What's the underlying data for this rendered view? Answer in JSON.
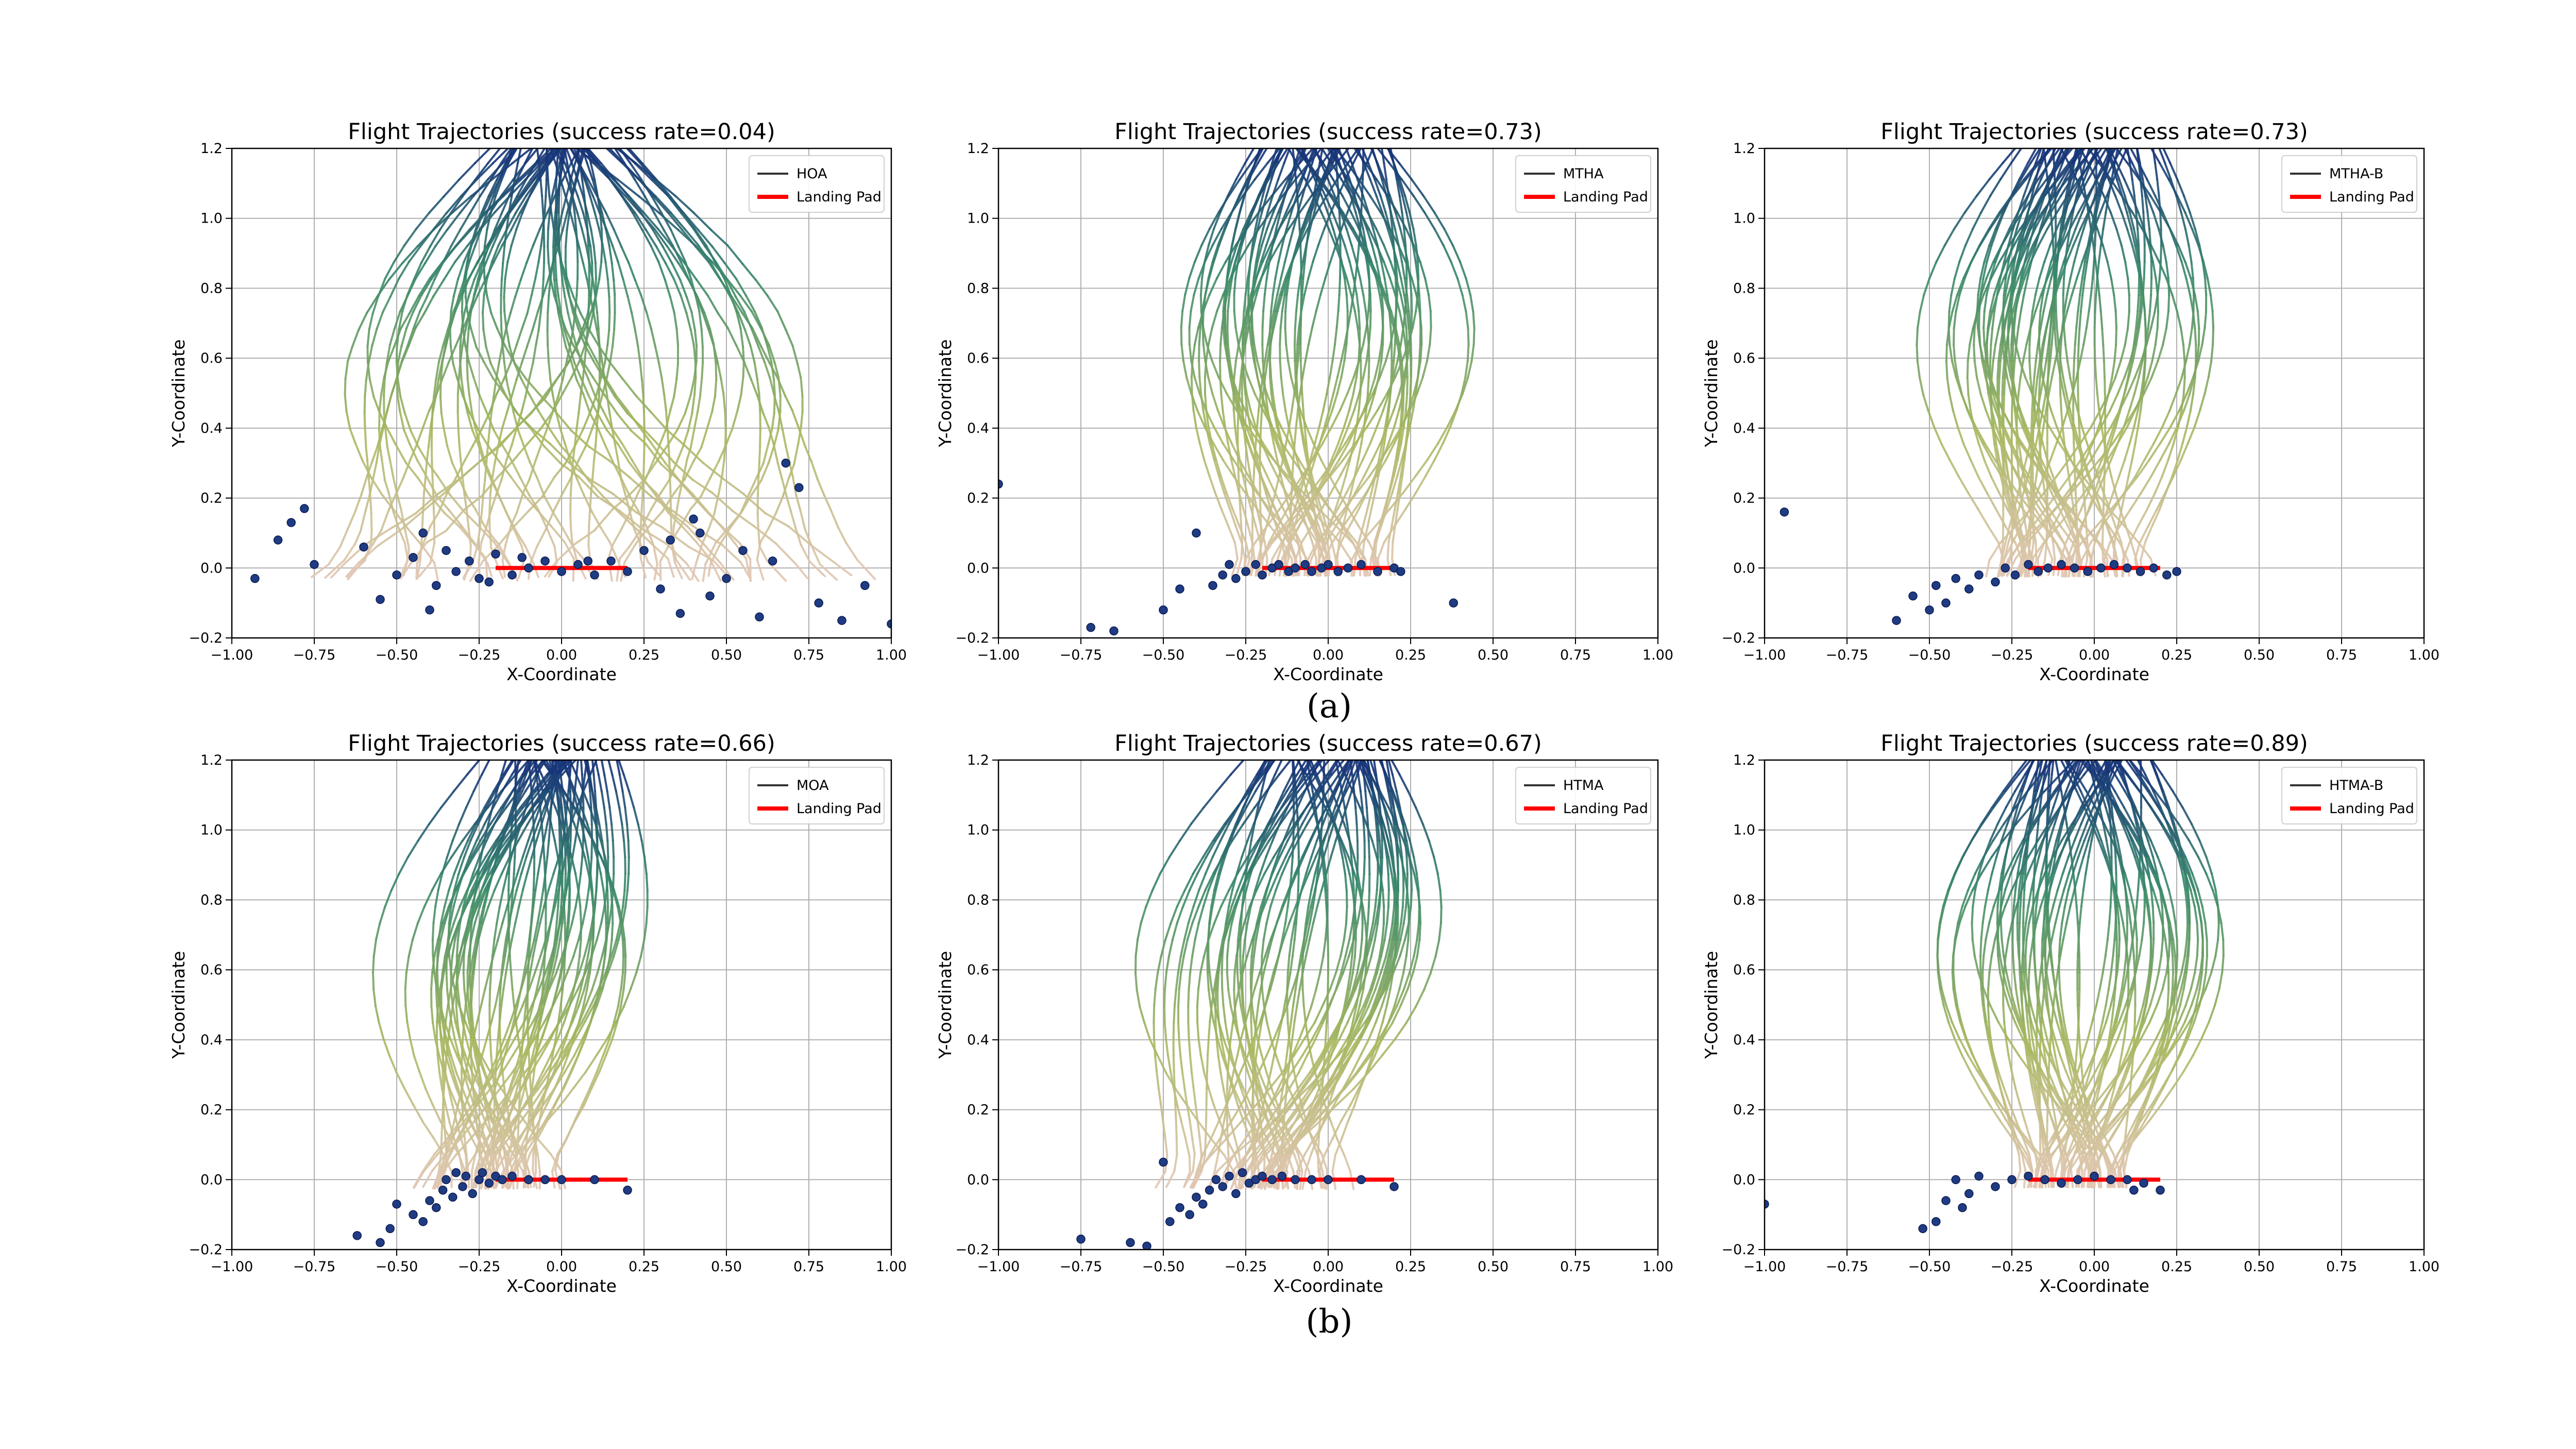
{
  "figure": {
    "captions": [
      "(a)",
      "(b)"
    ]
  },
  "colors": {
    "traj_start": "#0d1f7c",
    "traj_mid": "#3a8a6a",
    "traj_late": "#a8b860",
    "traj_end": "#e8c8bc",
    "endpoint": "#1f3b82",
    "landing_pad": "#ff0000",
    "grid": "#b0b0b0"
  },
  "chart_data": [
    {
      "type": "line",
      "title": "Flight Trajectories (success rate=0.04)",
      "xlabel": "X-Coordinate",
      "ylabel": "Y-Coordinate",
      "xlim": [
        -1.0,
        1.0
      ],
      "ylim": [
        -0.2,
        1.2
      ],
      "xticks": [
        "−1.00",
        "−0.75",
        "−0.50",
        "−0.25",
        "0.00",
        "0.25",
        "0.50",
        "0.75",
        "1.00"
      ],
      "yticks": [
        "−0.2",
        "0.0",
        "0.2",
        "0.4",
        "0.6",
        "0.8",
        "1.0",
        "1.2"
      ],
      "grid": true,
      "legend": {
        "position": "top-right",
        "entries": [
          "HOA",
          "Landing Pad"
        ]
      },
      "landing_pad": {
        "x": [
          -0.2,
          0.2
        ],
        "y": 0.0
      },
      "success_rate": 0.04,
      "trajectory_model": {
        "n": 60,
        "start_spread": 0.18,
        "end_spread": 0.75,
        "end_center": 0.02,
        "bulge": 0.35,
        "curl": 0.35
      },
      "endpoints": [
        [
          -0.93,
          -0.03
        ],
        [
          -0.86,
          0.08
        ],
        [
          -0.82,
          0.13
        ],
        [
          -0.78,
          0.17
        ],
        [
          -0.75,
          0.01
        ],
        [
          -0.5,
          -0.02
        ],
        [
          -0.45,
          0.03
        ],
        [
          -0.42,
          0.1
        ],
        [
          -0.4,
          -0.12
        ],
        [
          -0.38,
          -0.05
        ],
        [
          -0.35,
          0.05
        ],
        [
          -0.32,
          -0.01
        ],
        [
          -0.28,
          0.02
        ],
        [
          -0.25,
          -0.03
        ],
        [
          -0.2,
          0.04
        ],
        [
          -0.15,
          -0.02
        ],
        [
          -0.1,
          0.0
        ],
        [
          -0.05,
          0.02
        ],
        [
          0.0,
          -0.01
        ],
        [
          0.05,
          0.01
        ],
        [
          0.1,
          -0.02
        ],
        [
          0.15,
          0.02
        ],
        [
          0.2,
          -0.01
        ],
        [
          0.25,
          0.05
        ],
        [
          0.3,
          -0.06
        ],
        [
          0.33,
          0.08
        ],
        [
          0.36,
          -0.13
        ],
        [
          0.42,
          0.1
        ],
        [
          0.45,
          -0.08
        ],
        [
          0.5,
          -0.03
        ],
        [
          0.55,
          0.05
        ],
        [
          0.6,
          -0.14
        ],
        [
          0.64,
          0.02
        ],
        [
          0.68,
          0.3
        ],
        [
          0.72,
          0.23
        ],
        [
          0.78,
          -0.1
        ],
        [
          0.85,
          -0.15
        ],
        [
          0.92,
          -0.05
        ],
        [
          1.0,
          -0.16
        ],
        [
          -0.6,
          0.06
        ],
        [
          -0.55,
          -0.09
        ],
        [
          0.4,
          0.14
        ],
        [
          -0.12,
          0.03
        ],
        [
          0.08,
          0.02
        ],
        [
          -0.22,
          -0.04
        ]
      ]
    },
    {
      "type": "line",
      "title": "Flight Trajectories (success rate=0.73)",
      "xlabel": "X-Coordinate",
      "ylabel": "Y-Coordinate",
      "xlim": [
        -1.0,
        1.0
      ],
      "ylim": [
        -0.2,
        1.2
      ],
      "xticks": [
        "−1.00",
        "−0.75",
        "−0.50",
        "−0.25",
        "0.00",
        "0.25",
        "0.50",
        "0.75",
        "1.00"
      ],
      "yticks": [
        "−0.2",
        "0.0",
        "0.2",
        "0.4",
        "0.6",
        "0.8",
        "1.0",
        "1.2"
      ],
      "grid": true,
      "legend": {
        "position": "top-right",
        "entries": [
          "MTHA",
          "Landing Pad"
        ]
      },
      "landing_pad": {
        "x": [
          -0.2,
          0.2
        ],
        "y": 0.0
      },
      "success_rate": 0.73,
      "trajectory_model": {
        "n": 60,
        "start_spread": 0.3,
        "end_spread": 0.22,
        "end_center": -0.05,
        "bulge": 0.32,
        "curl": 0.05
      },
      "endpoints": [
        [
          -1.0,
          0.24
        ],
        [
          -0.72,
          -0.17
        ],
        [
          -0.65,
          -0.18
        ],
        [
          -0.5,
          -0.12
        ],
        [
          -0.45,
          -0.06
        ],
        [
          -0.4,
          0.1
        ],
        [
          -0.35,
          -0.05
        ],
        [
          -0.32,
          -0.02
        ],
        [
          -0.3,
          0.01
        ],
        [
          -0.28,
          -0.03
        ],
        [
          -0.25,
          -0.01
        ],
        [
          -0.22,
          0.01
        ],
        [
          -0.2,
          -0.02
        ],
        [
          -0.17,
          0.0
        ],
        [
          -0.15,
          0.01
        ],
        [
          -0.12,
          -0.01
        ],
        [
          -0.1,
          0.0
        ],
        [
          -0.07,
          0.01
        ],
        [
          -0.05,
          -0.01
        ],
        [
          -0.02,
          0.0
        ],
        [
          0.0,
          0.01
        ],
        [
          0.03,
          -0.01
        ],
        [
          0.06,
          0.0
        ],
        [
          0.1,
          0.01
        ],
        [
          0.15,
          -0.01
        ],
        [
          0.2,
          0.0
        ],
        [
          0.22,
          -0.01
        ],
        [
          0.38,
          -0.1
        ]
      ]
    },
    {
      "type": "line",
      "title": "Flight Trajectories (success rate=0.73)",
      "xlabel": "X-Coordinate",
      "ylabel": "Y-Coordinate",
      "xlim": [
        -1.0,
        1.0
      ],
      "ylim": [
        -0.2,
        1.2
      ],
      "xticks": [
        "−1.00",
        "−0.75",
        "−0.50",
        "−0.25",
        "0.00",
        "0.25",
        "0.50",
        "0.75",
        "1.00"
      ],
      "yticks": [
        "−0.2",
        "0.0",
        "0.2",
        "0.4",
        "0.6",
        "0.8",
        "1.0",
        "1.2"
      ],
      "grid": true,
      "legend": {
        "position": "top-right",
        "entries": [
          "MTHA-B",
          "Landing Pad"
        ]
      },
      "landing_pad": {
        "x": [
          -0.2,
          0.2
        ],
        "y": 0.0
      },
      "success_rate": 0.73,
      "trajectory_model": {
        "n": 60,
        "start_spread": 0.28,
        "end_spread": 0.25,
        "end_center": -0.08,
        "bulge": 0.33,
        "curl": 0.1
      },
      "endpoints": [
        [
          -0.94,
          0.16
        ],
        [
          -0.6,
          -0.15
        ],
        [
          -0.55,
          -0.08
        ],
        [
          -0.5,
          -0.12
        ],
        [
          -0.48,
          -0.05
        ],
        [
          -0.45,
          -0.1
        ],
        [
          -0.42,
          -0.03
        ],
        [
          -0.38,
          -0.06
        ],
        [
          -0.35,
          -0.02
        ],
        [
          -0.3,
          -0.04
        ],
        [
          -0.27,
          0.0
        ],
        [
          -0.24,
          -0.02
        ],
        [
          -0.2,
          0.01
        ],
        [
          -0.17,
          -0.01
        ],
        [
          -0.14,
          0.0
        ],
        [
          -0.1,
          0.01
        ],
        [
          -0.06,
          0.0
        ],
        [
          -0.02,
          -0.01
        ],
        [
          0.02,
          0.0
        ],
        [
          0.06,
          0.01
        ],
        [
          0.1,
          0.0
        ],
        [
          0.14,
          -0.01
        ],
        [
          0.18,
          0.0
        ],
        [
          0.22,
          -0.02
        ],
        [
          0.25,
          -0.01
        ]
      ]
    },
    {
      "type": "line",
      "title": "Flight Trajectories (success rate=0.66)",
      "xlabel": "X-Coordinate",
      "ylabel": "Y-Coordinate",
      "xlim": [
        -1.0,
        1.0
      ],
      "ylim": [
        -0.2,
        1.2
      ],
      "xticks": [
        "−1.00",
        "−0.75",
        "−0.50",
        "−0.25",
        "0.00",
        "0.25",
        "0.50",
        "0.75",
        "1.00"
      ],
      "yticks": [
        "−0.2",
        "0.0",
        "0.2",
        "0.4",
        "0.6",
        "0.8",
        "1.0",
        "1.2"
      ],
      "grid": true,
      "legend": {
        "position": "top-right",
        "entries": [
          "MOA",
          "Landing Pad"
        ]
      },
      "landing_pad": {
        "x": [
          -0.2,
          0.2
        ],
        "y": 0.0
      },
      "success_rate": 0.66,
      "trajectory_model": {
        "n": 60,
        "start_spread": 0.28,
        "end_spread": 0.18,
        "end_center": -0.22,
        "bulge": 0.25,
        "curl": 0.12
      },
      "endpoints": [
        [
          -0.62,
          -0.16
        ],
        [
          -0.55,
          -0.18
        ],
        [
          -0.52,
          -0.14
        ],
        [
          -0.5,
          -0.07
        ],
        [
          -0.45,
          -0.1
        ],
        [
          -0.42,
          -0.12
        ],
        [
          -0.4,
          -0.06
        ],
        [
          -0.38,
          -0.08
        ],
        [
          -0.36,
          -0.03
        ],
        [
          -0.35,
          0.0
        ],
        [
          -0.33,
          -0.05
        ],
        [
          -0.32,
          0.02
        ],
        [
          -0.3,
          -0.02
        ],
        [
          -0.29,
          0.01
        ],
        [
          -0.27,
          -0.04
        ],
        [
          -0.25,
          0.0
        ],
        [
          -0.24,
          0.02
        ],
        [
          -0.22,
          -0.01
        ],
        [
          -0.2,
          0.01
        ],
        [
          -0.18,
          0.0
        ],
        [
          -0.15,
          0.01
        ],
        [
          -0.1,
          0.0
        ],
        [
          -0.05,
          0.0
        ],
        [
          0.0,
          0.0
        ],
        [
          0.1,
          0.0
        ],
        [
          0.2,
          -0.03
        ]
      ]
    },
    {
      "type": "line",
      "title": "Flight Trajectories (success rate=0.67)",
      "xlabel": "X-Coordinate",
      "ylabel": "Y-Coordinate",
      "xlim": [
        -1.0,
        1.0
      ],
      "ylim": [
        -0.2,
        1.2
      ],
      "xticks": [
        "−1.00",
        "−0.75",
        "−0.50",
        "−0.25",
        "0.00",
        "0.25",
        "0.50",
        "0.75",
        "1.00"
      ],
      "yticks": [
        "−0.2",
        "0.0",
        "0.2",
        "0.4",
        "0.6",
        "0.8",
        "1.0",
        "1.2"
      ],
      "grid": true,
      "legend": {
        "position": "top-right",
        "entries": [
          "HTMA",
          "Landing Pad"
        ]
      },
      "landing_pad": {
        "x": [
          -0.2,
          0.2
        ],
        "y": 0.0
      },
      "success_rate": 0.67,
      "trajectory_model": {
        "n": 60,
        "start_spread": 0.28,
        "end_spread": 0.2,
        "end_center": -0.2,
        "bulge": 0.27,
        "curl": 0.14
      },
      "endpoints": [
        [
          -0.75,
          -0.17
        ],
        [
          -0.6,
          -0.18
        ],
        [
          -0.55,
          -0.19
        ],
        [
          -0.5,
          0.05
        ],
        [
          -0.48,
          -0.12
        ],
        [
          -0.45,
          -0.08
        ],
        [
          -0.42,
          -0.1
        ],
        [
          -0.4,
          -0.05
        ],
        [
          -0.38,
          -0.07
        ],
        [
          -0.36,
          -0.03
        ],
        [
          -0.34,
          0.0
        ],
        [
          -0.32,
          -0.02
        ],
        [
          -0.3,
          0.01
        ],
        [
          -0.28,
          -0.04
        ],
        [
          -0.26,
          0.02
        ],
        [
          -0.24,
          -0.01
        ],
        [
          -0.22,
          0.0
        ],
        [
          -0.2,
          0.01
        ],
        [
          -0.17,
          0.0
        ],
        [
          -0.14,
          0.01
        ],
        [
          -0.1,
          0.0
        ],
        [
          -0.05,
          0.0
        ],
        [
          0.0,
          0.0
        ],
        [
          0.1,
          0.0
        ],
        [
          0.2,
          -0.02
        ]
      ]
    },
    {
      "type": "line",
      "title": "Flight Trajectories (success rate=0.89)",
      "xlabel": "X-Coordinate",
      "ylabel": "Y-Coordinate",
      "xlim": [
        -1.0,
        1.0
      ],
      "ylim": [
        -0.2,
        1.2
      ],
      "xticks": [
        "−1.00",
        "−0.75",
        "−0.50",
        "−0.25",
        "0.00",
        "0.25",
        "0.50",
        "0.75",
        "1.00"
      ],
      "yticks": [
        "−0.2",
        "0.0",
        "0.2",
        "0.4",
        "0.6",
        "0.8",
        "1.0",
        "1.2"
      ],
      "grid": true,
      "legend": {
        "position": "top-right",
        "entries": [
          "HTMA-B",
          "Landing Pad"
        ]
      },
      "landing_pad": {
        "x": [
          -0.2,
          0.2
        ],
        "y": 0.0
      },
      "success_rate": 0.89,
      "trajectory_model": {
        "n": 60,
        "start_spread": 0.27,
        "end_spread": 0.16,
        "end_center": -0.06,
        "bulge": 0.33,
        "curl": 0.05
      },
      "endpoints": [
        [
          -1.0,
          -0.07
        ],
        [
          -0.52,
          -0.14
        ],
        [
          -0.48,
          -0.12
        ],
        [
          -0.45,
          -0.06
        ],
        [
          -0.42,
          0.0
        ],
        [
          -0.4,
          -0.08
        ],
        [
          -0.38,
          -0.04
        ],
        [
          -0.35,
          0.01
        ],
        [
          -0.3,
          -0.02
        ],
        [
          -0.25,
          0.0
        ],
        [
          -0.2,
          0.01
        ],
        [
          -0.15,
          0.0
        ],
        [
          -0.1,
          -0.01
        ],
        [
          -0.05,
          0.0
        ],
        [
          0.0,
          0.01
        ],
        [
          0.05,
          0.0
        ],
        [
          0.1,
          0.0
        ],
        [
          0.15,
          -0.01
        ],
        [
          0.2,
          -0.03
        ],
        [
          0.12,
          -0.03
        ]
      ]
    }
  ]
}
